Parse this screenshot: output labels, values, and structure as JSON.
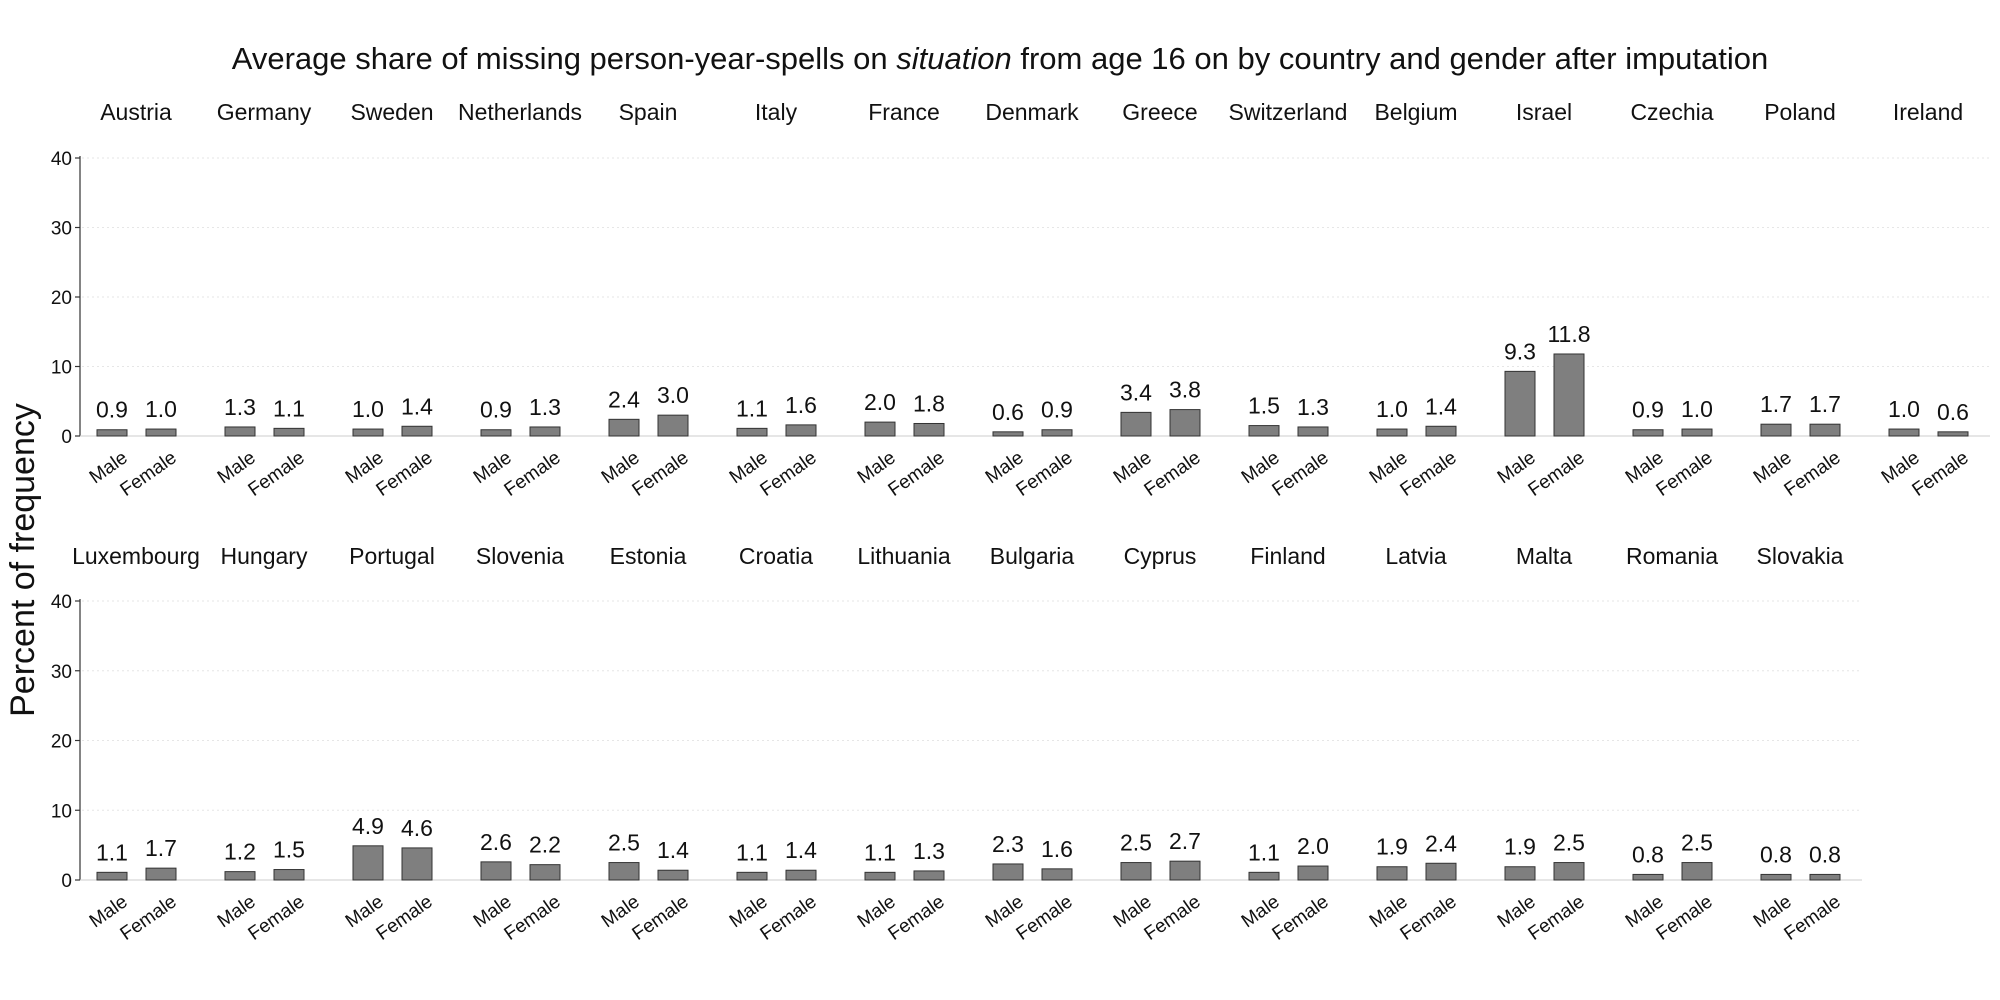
{
  "chart_data": {
    "type": "bar",
    "title_parts": [
      {
        "text": "Average share of missing person-year-spells on ",
        "italic": false
      },
      {
        "text": "situation",
        "italic": true
      },
      {
        "text": " from age 16 on by country and gender after imputation",
        "italic": false
      }
    ],
    "ylabel": "Percent of frequency",
    "ylim": [
      0,
      40
    ],
    "yticks": [
      "0",
      "10",
      "20",
      "30",
      "40"
    ],
    "categories": [
      "Male",
      "Female"
    ],
    "grid": true,
    "panels": [
      {
        "country": "Austria",
        "values": [
          0.9,
          1.0
        ],
        "labels": [
          "0.9",
          "1.0"
        ]
      },
      {
        "country": "Germany",
        "values": [
          1.3,
          1.1
        ],
        "labels": [
          "1.3",
          "1.1"
        ]
      },
      {
        "country": "Sweden",
        "values": [
          1.0,
          1.4
        ],
        "labels": [
          "1.0",
          "1.4"
        ]
      },
      {
        "country": "Netherlands",
        "values": [
          0.9,
          1.3
        ],
        "labels": [
          "0.9",
          "1.3"
        ]
      },
      {
        "country": "Spain",
        "values": [
          2.4,
          3.0
        ],
        "labels": [
          "2.4",
          "3.0"
        ]
      },
      {
        "country": "Italy",
        "values": [
          1.1,
          1.6
        ],
        "labels": [
          "1.1",
          "1.6"
        ]
      },
      {
        "country": "France",
        "values": [
          2.0,
          1.8
        ],
        "labels": [
          "2.0",
          "1.8"
        ]
      },
      {
        "country": "Denmark",
        "values": [
          0.6,
          0.9
        ],
        "labels": [
          "0.6",
          "0.9"
        ]
      },
      {
        "country": "Greece",
        "values": [
          3.4,
          3.8
        ],
        "labels": [
          "3.4",
          "3.8"
        ]
      },
      {
        "country": "Switzerland",
        "values": [
          1.5,
          1.3
        ],
        "labels": [
          "1.5",
          "1.3"
        ]
      },
      {
        "country": "Belgium",
        "values": [
          1.0,
          1.4
        ],
        "labels": [
          "1.0",
          "1.4"
        ]
      },
      {
        "country": "Israel",
        "values": [
          9.3,
          11.8
        ],
        "labels": [
          "9.3",
          "11.8"
        ]
      },
      {
        "country": "Czechia",
        "values": [
          0.9,
          1.0
        ],
        "labels": [
          "0.9",
          "1.0"
        ]
      },
      {
        "country": "Poland",
        "values": [
          1.7,
          1.7
        ],
        "labels": [
          "1.7",
          "1.7"
        ]
      },
      {
        "country": "Ireland",
        "values": [
          1.0,
          0.6
        ],
        "labels": [
          "1.0",
          "0.6"
        ]
      },
      {
        "country": "Luxembourg",
        "values": [
          1.1,
          1.7
        ],
        "labels": [
          "1.1",
          "1.7"
        ]
      },
      {
        "country": "Hungary",
        "values": [
          1.2,
          1.5
        ],
        "labels": [
          "1.2",
          "1.5"
        ]
      },
      {
        "country": "Portugal",
        "values": [
          4.9,
          4.6
        ],
        "labels": [
          "4.9",
          "4.6"
        ]
      },
      {
        "country": "Slovenia",
        "values": [
          2.6,
          2.2
        ],
        "labels": [
          "2.6",
          "2.2"
        ]
      },
      {
        "country": "Estonia",
        "values": [
          2.5,
          1.4
        ],
        "labels": [
          "2.5",
          "1.4"
        ]
      },
      {
        "country": "Croatia",
        "values": [
          1.1,
          1.4
        ],
        "labels": [
          "1.1",
          "1.4"
        ]
      },
      {
        "country": "Lithuania",
        "values": [
          1.1,
          1.3
        ],
        "labels": [
          "1.1",
          "1.3"
        ]
      },
      {
        "country": "Bulgaria",
        "values": [
          2.3,
          1.6
        ],
        "labels": [
          "2.3",
          "1.6"
        ]
      },
      {
        "country": "Cyprus",
        "values": [
          2.5,
          2.7
        ],
        "labels": [
          "2.5",
          "2.7"
        ]
      },
      {
        "country": "Finland",
        "values": [
          1.1,
          2.0
        ],
        "labels": [
          "1.1",
          "2.0"
        ]
      },
      {
        "country": "Latvia",
        "values": [
          1.9,
          2.4
        ],
        "labels": [
          "1.9",
          "2.4"
        ]
      },
      {
        "country": "Malta",
        "values": [
          1.9,
          2.5
        ],
        "labels": [
          "1.9",
          "2.5"
        ]
      },
      {
        "country": "Romania",
        "values": [
          0.8,
          2.5
        ],
        "labels": [
          "0.8",
          "2.5"
        ]
      },
      {
        "country": "Slovakia",
        "values": [
          0.8,
          0.8
        ],
        "labels": [
          "0.8",
          "0.8"
        ]
      }
    ],
    "colors": {
      "bar_fill": "#7f7f7f",
      "bar_stroke": "#333333",
      "text": "#111111"
    }
  }
}
